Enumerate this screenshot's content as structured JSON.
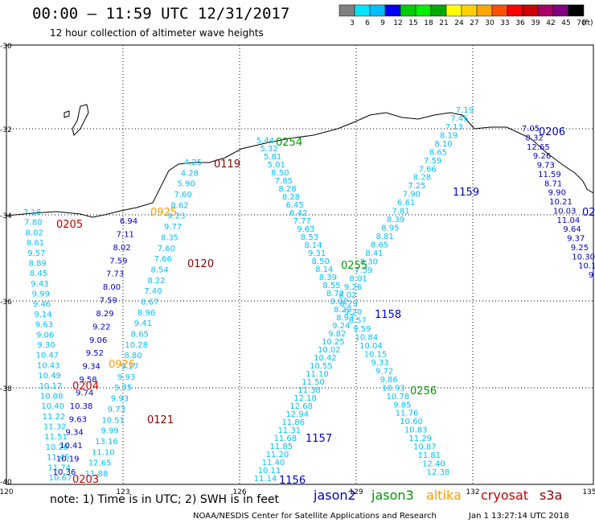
{
  "title": "00:00 – 11:59 UTC 12/31/2017",
  "subtitle": "12 hour collection of altimeter wave heights",
  "colorbar": {
    "labels": [
      "3",
      "6",
      "9",
      "12",
      "15",
      "18",
      "21",
      "24",
      "27",
      "30",
      "33",
      "36",
      "39",
      "42",
      "45",
      "70",
      "(ft)"
    ],
    "colors": [
      "#808080",
      "#00e5ff",
      "#00bfff",
      "#0000ff",
      "#00cc00",
      "#00ee00",
      "#00aa00",
      "#ffff00",
      "#ffd000",
      "#ffa500",
      "#ff5000",
      "#ff0000",
      "#cc0000",
      "#aa0066",
      "#800080",
      "#000000"
    ]
  },
  "axes": {
    "lat_labels": [
      "-30",
      "-32",
      "-34",
      "-36",
      "-38",
      "-40"
    ],
    "lon_labels": [
      "120",
      "123",
      "126",
      "129",
      "132",
      "135"
    ]
  },
  "passes": [
    {
      "label": "0205",
      "color": "#cc0000"
    },
    {
      "label": "0925",
      "color": "#ff9900"
    },
    {
      "label": "0119",
      "color": "#8b0000"
    },
    {
      "label": "0254",
      "color": "#009900"
    },
    {
      "label": "0206",
      "color": "#0000cc"
    },
    {
      "label": "1159",
      "color": "#0000cc"
    },
    {
      "label": "0120",
      "color": "#8b0000"
    },
    {
      "label": "0255",
      "color": "#009900"
    },
    {
      "label": "1158",
      "color": "#0000cc"
    },
    {
      "label": "0926",
      "color": "#ff9900"
    },
    {
      "label": "0204",
      "color": "#cc0000"
    },
    {
      "label": "0256",
      "color": "#009900"
    },
    {
      "label": "0121",
      "color": "#8b0000"
    },
    {
      "label": "1157",
      "color": "#0000cc"
    },
    {
      "label": "1156",
      "color": "#0000cc"
    },
    {
      "label": "0203",
      "color": "#cc0000"
    },
    {
      "label": "02",
      "color": "#0000cc"
    }
  ],
  "footer": {
    "note": "note: 1) Time is in UTC; 2) SWH is in feet",
    "credit": "NOAA/NESDIS Center for Satellite Applications and Research",
    "timestamp": "Jan  1 13:27:14 UTC 2018"
  },
  "satellites": [
    {
      "name": "jason2",
      "color": "#0000cc"
    },
    {
      "name": "jason3",
      "color": "#009900"
    },
    {
      "name": "altika",
      "color": "#ff9900"
    },
    {
      "name": "cryosat",
      "color": "#cc0000"
    },
    {
      "name": "s3a",
      "color": "#8b0000"
    }
  ],
  "tracks": [
    {
      "color": "#00bfff",
      "values": [
        "7.18",
        "7.80",
        "8.02",
        "8.61",
        "9.57",
        "8.89",
        "8.45",
        "9.43",
        "9.99",
        "9.46",
        "9.14",
        "9.63",
        "9.06",
        "9.30",
        "10.47",
        "10.43",
        "10.49",
        "10.17",
        "10.08",
        "10.40",
        "11.22",
        "11.32",
        "11.51",
        "10.26",
        "11.45",
        "11.74",
        "10.67"
      ]
    },
    {
      "color": "#0000cc",
      "values": [
        "6.94",
        "7.11",
        "8.02",
        "7.59",
        "7.73",
        "8.00",
        "7.59",
        "8.29",
        "9.22",
        "9.06",
        "9.52",
        "9.34",
        "9.58",
        "9.74",
        "10.38",
        "9.63",
        "9.34",
        "10.41",
        "10.19",
        "10.36"
      ]
    },
    {
      "color": "#00bfff",
      "values": [
        "4.25",
        "4.28",
        "5.90",
        "7.60",
        "8.62",
        "9.23",
        "9.77",
        "8.35",
        "7.60",
        "7.66",
        "8.54",
        "8.22",
        "7.40",
        "8.67",
        "8.96",
        "9.41",
        "8.65",
        "10.28",
        "8.80",
        "9.27",
        "9.93",
        "9.75",
        "9.93",
        "9.73",
        "10.51",
        "9.99",
        "13.16",
        "11.10",
        "12.65",
        "11.88"
      ]
    },
    {
      "color": "#00bfff",
      "values": [
        "5.44",
        "5.32",
        "5.81",
        "5.01",
        "8.50",
        "7.85",
        "8.28",
        "8.28",
        "6.45",
        "6.42",
        "7.77",
        "9.63",
        "8.53",
        "8.14",
        "9.31",
        "8.50",
        "8.14",
        "8.39",
        "8.55",
        "8.72",
        "8.02",
        "8.29",
        "8.93",
        "9.24",
        "9.82",
        "10.25",
        "10.02",
        "10.42",
        "10.55",
        "11.10",
        "11.50",
        "11.38",
        "12.18",
        "12.68",
        "12.94",
        "11.86",
        "11.31",
        "11.68",
        "11.85",
        "11.20",
        "11.40",
        "10.11",
        "11.14"
      ]
    },
    {
      "color": "#00bfff",
      "values": [
        "7.19",
        "7.45",
        "7.13",
        "8.19",
        "8.10",
        "8.65",
        "7.59",
        "7.66",
        "8.28",
        "7.25",
        "7.90",
        "6.61",
        "7.81",
        "8.39",
        "8.95",
        "8.81",
        "8.65",
        "8.41",
        "8.30",
        "7.39",
        "8.01",
        "9.26",
        "8.02",
        "8.29",
        "9.20",
        "8.57",
        "9.59",
        "10.84",
        "10.04",
        "10.15",
        "9.33",
        "9.72",
        "9.86",
        "10.93",
        "10.78",
        "9.85",
        "11.76",
        "10.60",
        "10.83",
        "11.29",
        "10.87",
        "11.81",
        "12.40",
        "12.38"
      ]
    },
    {
      "color": "#0000cc",
      "values": [
        "7.05",
        "8.32",
        "12.65",
        "9.26",
        "9.73",
        "11.59",
        "8.71",
        "9.90",
        "10.21",
        "10.03",
        "11.04",
        "9.64",
        "9.37",
        "9.25",
        "10.30",
        "10.1",
        "9"
      ]
    }
  ]
}
